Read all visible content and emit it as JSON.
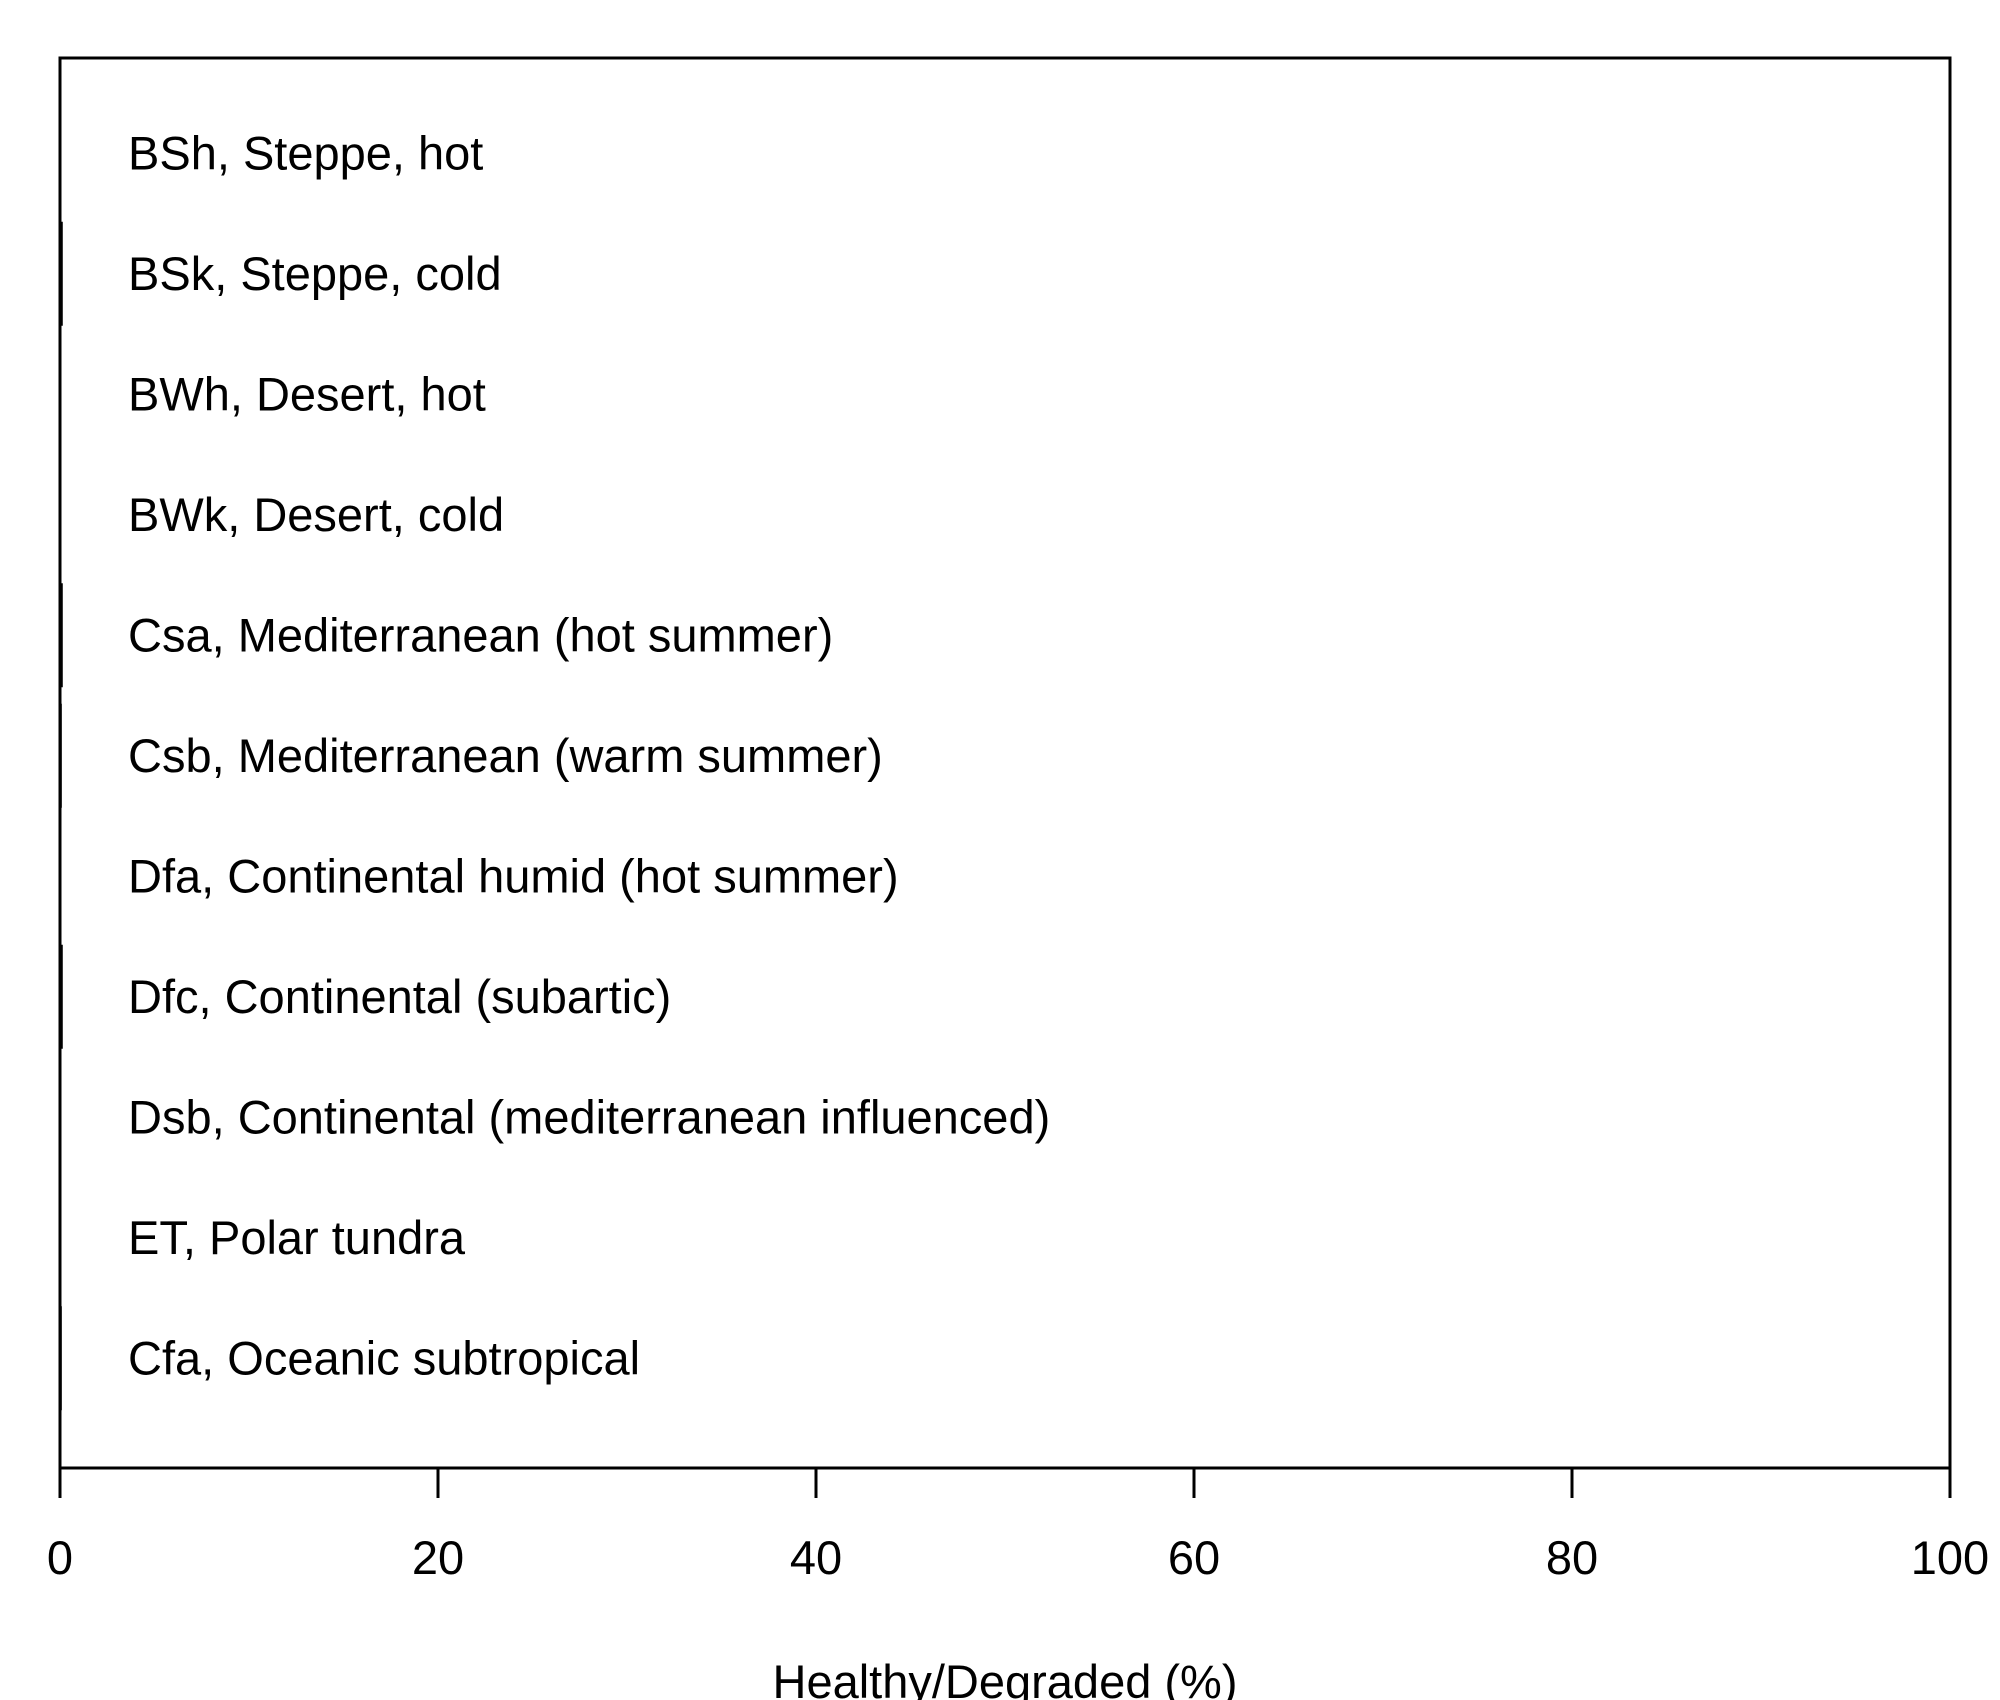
{
  "chart_data": {
    "type": "bar",
    "orientation": "horizontal",
    "categories": [
      "BSh, Steppe, hot",
      "BSk, Steppe, cold",
      "BWh, Desert, hot",
      "BWk, Desert, cold",
      "Csa, Mediterranean (hot summer)",
      "Csb, Mediterranean (warm summer)",
      "Dfa, Continental humid (hot summer)",
      "Dfc, Continental (subartic)",
      "Dsb, Continental (mediterranean influenced)",
      "ET, Polar tundra",
      "Cfa, Oceanic subtropical"
    ],
    "values": [
      0.1,
      0.2,
      0.05,
      0.1,
      0.2,
      0.15,
      0.1,
      0.2,
      0.1,
      0.05,
      0.15
    ],
    "title": "",
    "xlabel": "Healthy/Degraded  (%)",
    "ylabel": "",
    "xlim": [
      0,
      100
    ],
    "xticks": [
      0,
      20,
      40,
      60,
      80,
      100
    ],
    "grid": false,
    "bar_color": "#000000"
  }
}
